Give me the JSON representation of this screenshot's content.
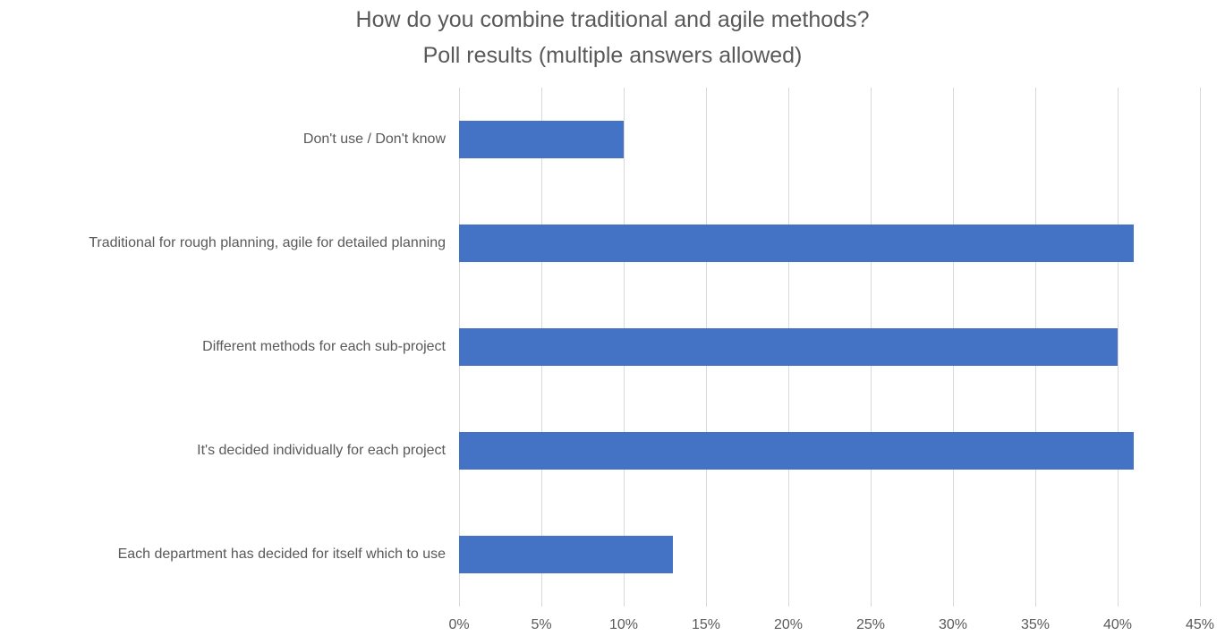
{
  "title": {
    "line1": "How do you combine traditional and agile methods?",
    "line2": "Poll results (multiple answers allowed)"
  },
  "chart_data": {
    "type": "bar",
    "orientation": "horizontal",
    "title": "How do you combine traditional and agile methods?\nPoll results (multiple answers allowed)",
    "categories": [
      "Don't use / Don't know",
      "Traditional for rough planning, agile for detailed planning",
      "Different methods for each sub-project",
      "It's decided individually for each project",
      "Each department has decided for itself which to use"
    ],
    "values": [
      10,
      41,
      40,
      41,
      13
    ],
    "unit": "%",
    "xlabel": "",
    "ylabel": "",
    "xlim": [
      0,
      45
    ],
    "x_tick_step": 5,
    "x_tick_labels": [
      "0%",
      "5%",
      "10%",
      "15%",
      "20%",
      "25%",
      "30%",
      "35%",
      "40%",
      "45%"
    ],
    "grid": true,
    "legend": false,
    "colors": {
      "bar": "#4472C4",
      "gridline": "#D9D9D9",
      "text": "#595959",
      "background": "#FFFFFF"
    }
  }
}
